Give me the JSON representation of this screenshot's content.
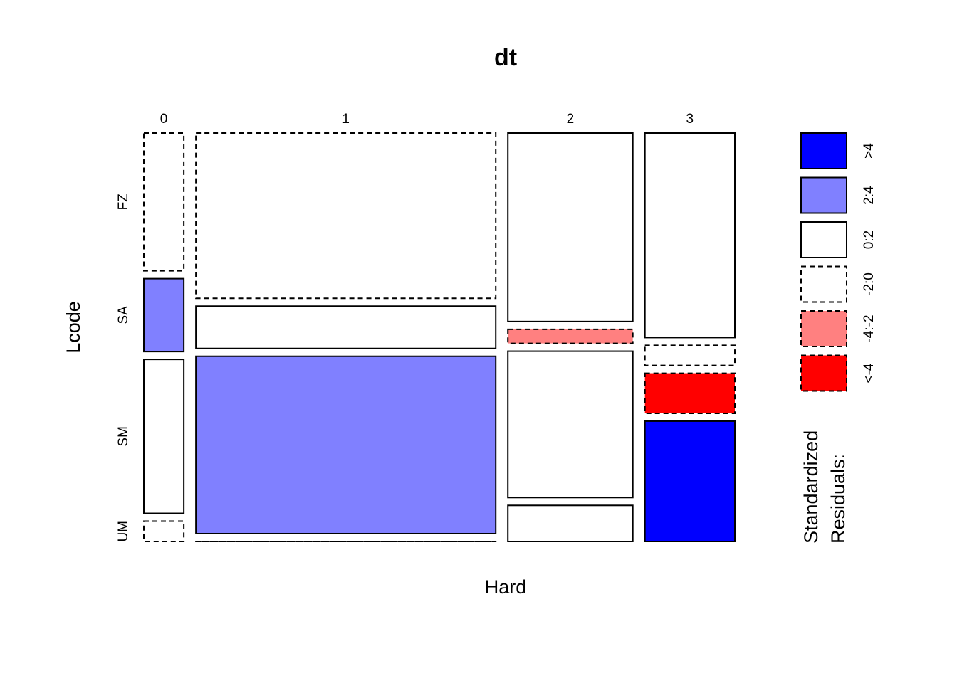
{
  "chart_data": {
    "type": "mosaic",
    "title": "dt",
    "xlabel": "Hard",
    "ylabel": "Lcode",
    "x_categories": [
      "0",
      "1",
      "2",
      "3"
    ],
    "y_categories": [
      "FZ",
      "SA",
      "SM",
      "UM"
    ],
    "column_proportions": [
      0.08,
      0.6,
      0.25,
      0.18
    ],
    "cells": [
      {
        "x": "0",
        "y": "FZ",
        "proportion": 0.34,
        "residual_class": "-2:0"
      },
      {
        "x": "0",
        "y": "SA",
        "proportion": 0.18,
        "residual_class": "2:4"
      },
      {
        "x": "0",
        "y": "SM",
        "proportion": 0.38,
        "residual_class": "0:2"
      },
      {
        "x": "0",
        "y": "UM",
        "proportion": 0.05,
        "residual_class": "-2:0"
      },
      {
        "x": "1",
        "y": "FZ",
        "proportion": 0.41,
        "residual_class": "-2:0"
      },
      {
        "x": "1",
        "y": "SA",
        "proportion": 0.105,
        "residual_class": "0:2"
      },
      {
        "x": "1",
        "y": "SM",
        "proportion": 0.44,
        "residual_class": "2:4"
      },
      {
        "x": "1",
        "y": "UM",
        "proportion": 0.0,
        "residual_class": "-4:-2"
      },
      {
        "x": "2",
        "y": "FZ",
        "proportion": 0.47,
        "residual_class": "0:2"
      },
      {
        "x": "2",
        "y": "SA",
        "proportion": 0.035,
        "residual_class": "-4:-2"
      },
      {
        "x": "2",
        "y": "SM",
        "proportion": 0.365,
        "residual_class": "0:2"
      },
      {
        "x": "2",
        "y": "UM",
        "proportion": 0.09,
        "residual_class": "0:2"
      },
      {
        "x": "3",
        "y": "FZ",
        "proportion": 0.51,
        "residual_class": "0:2"
      },
      {
        "x": "3",
        "y": "SA",
        "proportion": 0.05,
        "residual_class": "-2:0"
      },
      {
        "x": "3",
        "y": "SM",
        "proportion": 0.1,
        "residual_class": "<-4"
      },
      {
        "x": "3",
        "y": "UM",
        "proportion": 0.3,
        "residual_class": ">4"
      }
    ],
    "legend": {
      "title_line1": "Standardized",
      "title_line2": "Residuals:",
      "placement": "right",
      "entries": [
        {
          "key": ">4",
          "label": ">4",
          "fill": "#0000ff",
          "dashed": false
        },
        {
          "key": "2:4",
          "label": "2:4",
          "fill": "#8080ff",
          "dashed": false
        },
        {
          "key": "0:2",
          "label": "0:2",
          "fill": "#ffffff",
          "dashed": false
        },
        {
          "key": "-2:0",
          "label": "-2:0",
          "fill": "#ffffff",
          "dashed": true
        },
        {
          "key": "-4:-2",
          "label": "-4:-2",
          "fill": "#ff8080",
          "dashed": true
        },
        {
          "key": "<-4",
          "label": "<-4",
          "fill": "#ff0000",
          "dashed": true
        }
      ]
    }
  }
}
